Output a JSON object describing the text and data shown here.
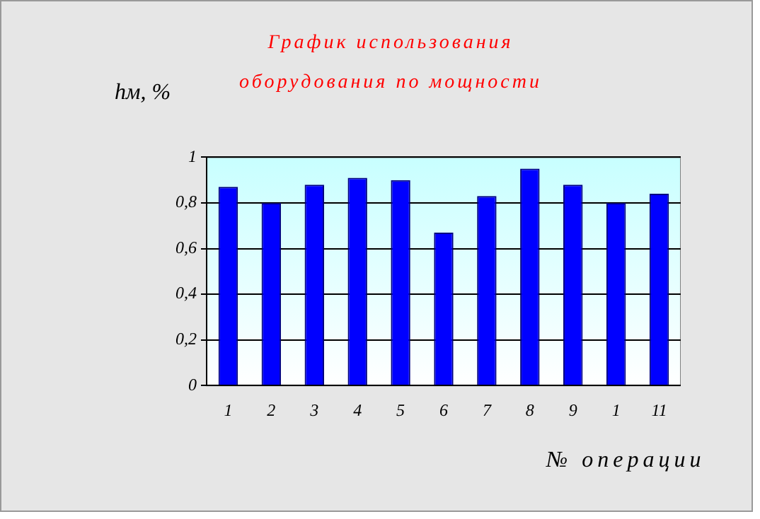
{
  "chart_data": {
    "type": "bar",
    "title": "График использования оборудования по мощности",
    "xlabel": "№ операции",
    "ylabel": "hм, %",
    "categories": [
      "1",
      "2",
      "3",
      "4",
      "5",
      "6",
      "7",
      "8",
      "9",
      "1",
      "11"
    ],
    "values": [
      0.87,
      0.8,
      0.88,
      0.91,
      0.9,
      0.67,
      0.83,
      0.95,
      0.88,
      0.8,
      0.84
    ],
    "color": "#0000ff",
    "ylim": [
      0,
      1
    ],
    "yticks": [
      {
        "value": 0,
        "label": "0"
      },
      {
        "value": 0.2,
        "label": "0,2"
      },
      {
        "value": 0.4,
        "label": "0,4"
      },
      {
        "value": 0.6,
        "label": "0,6"
      },
      {
        "value": 0.8,
        "label": "0,8"
      },
      {
        "value": 1,
        "label": "1"
      }
    ],
    "grid": "y",
    "legend": false
  }
}
